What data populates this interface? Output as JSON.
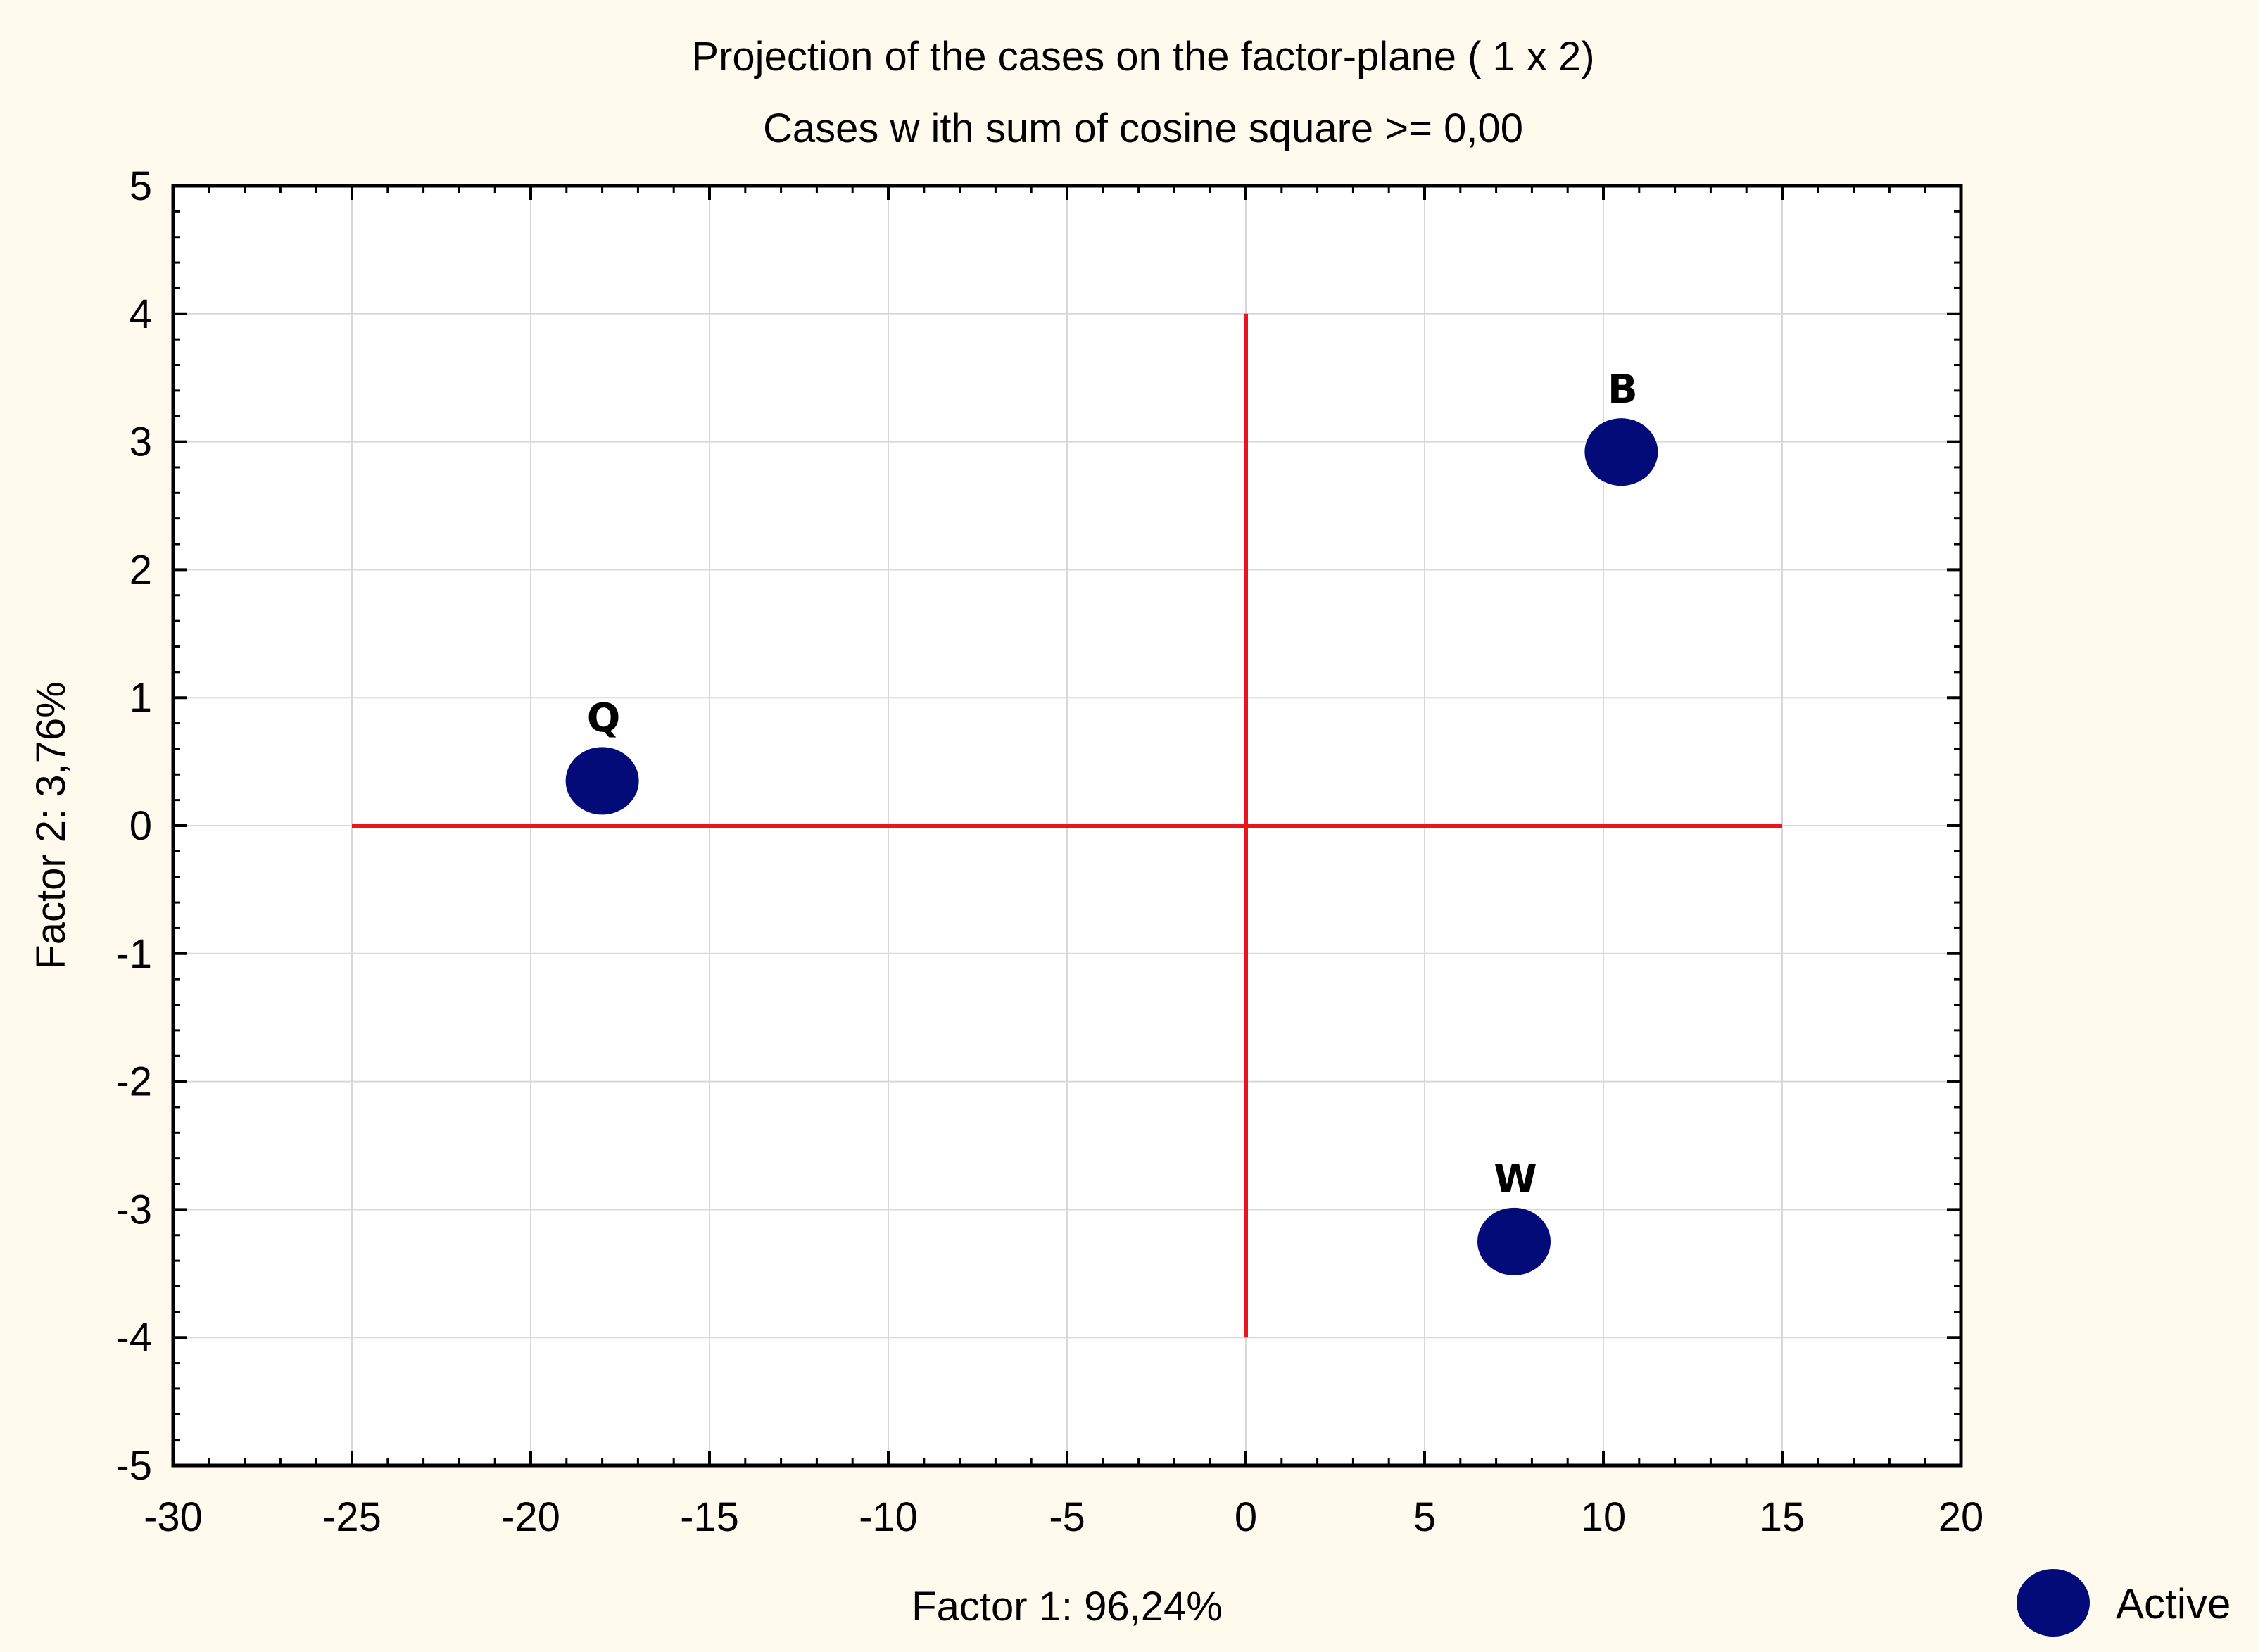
{
  "colors": {
    "background": "#fefbee",
    "plot_background": "#ffffff",
    "grid": "#d8d8d8",
    "frame": "#000000",
    "reference_lines": "#e8141e",
    "marker": "#020b78"
  },
  "chart_data": {
    "type": "scatter",
    "title": "Projection of the cases on the factor-plane (  1 x   2)",
    "subtitle": "Cases w ith sum of cosine square >=  0,00",
    "xlabel": "Factor 1: 96,24%",
    "ylabel": "Factor 2:  3,76%",
    "xlim": [
      -30,
      20
    ],
    "ylim": [
      -5,
      5
    ],
    "x_ticks": [
      -30,
      -25,
      -20,
      -15,
      -10,
      -5,
      0,
      5,
      10,
      15,
      20
    ],
    "y_ticks": [
      -5,
      -4,
      -3,
      -2,
      -1,
      0,
      1,
      2,
      3,
      4,
      5
    ],
    "grid": true,
    "reference_lines": {
      "horizontal": {
        "y": 0,
        "x_from": -25,
        "x_to": 15
      },
      "vertical": {
        "x": 0,
        "y_from": -4,
        "y_to": 4
      }
    },
    "series": [
      {
        "name": "Active",
        "points": [
          {
            "label": "Q",
            "x": -18.0,
            "y": 0.35
          },
          {
            "label": "B",
            "x": 10.5,
            "y": 2.92
          },
          {
            "label": "W",
            "x": 7.5,
            "y": -3.25
          }
        ]
      }
    ],
    "legend": {
      "position": "bottom-right",
      "entries": [
        "Active"
      ]
    }
  }
}
